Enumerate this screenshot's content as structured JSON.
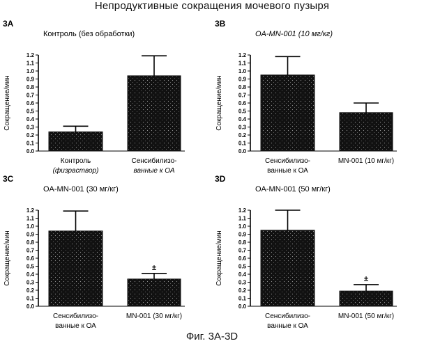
{
  "figure": {
    "title": "Непродуктивные сокращения мочевого пузыря",
    "caption": "Фиг. 3А-3D"
  },
  "colors": {
    "bar": "#111111",
    "axis": "#000000",
    "dots": "#ffffff"
  },
  "chart_data": [
    {
      "id": "3A",
      "type": "bar",
      "panel_label": "3A",
      "title": "Контроль (без обработки)",
      "title_italic": false,
      "ylabel": "Сокращение/мин",
      "ylim": [
        0,
        1.2
      ],
      "yticks": [
        "0.0",
        "0.1",
        "0.2",
        "0.3",
        "0.4",
        "0.5",
        "0.6",
        "0.7",
        "0.8",
        "0.9",
        "1.0",
        "1.1",
        "1.2"
      ],
      "categories": [
        {
          "lines": [
            "Контроль",
            "(физраствор)"
          ],
          "italic_line": 1
        },
        {
          "lines": [
            "Сенсибилизо-",
            "ванные к ОА"
          ],
          "italic_line": 1
        }
      ],
      "values": [
        0.24,
        0.94
      ],
      "errors": [
        0.07,
        0.25
      ],
      "significance": [
        "",
        ""
      ]
    },
    {
      "id": "3B",
      "type": "bar",
      "panel_label": "3B",
      "title": "OA-MN-001 (10 мг/кг)",
      "title_italic": true,
      "ylabel": "Сокращение/мин",
      "ylim": [
        0,
        1.2
      ],
      "yticks": [
        "0.0",
        "0.1",
        "0.2",
        "0.3",
        "0.4",
        "0.5",
        "0.6",
        "0.7",
        "0.8",
        "0.9",
        "1.0",
        "1.1",
        "1.2"
      ],
      "categories": [
        {
          "lines": [
            "Сенсибилизо-",
            "ванные к ОА"
          ],
          "italic_line": -1
        },
        {
          "lines": [
            "MN-001 (10 мг/кг)"
          ],
          "italic_line": -1
        }
      ],
      "values": [
        0.95,
        0.48
      ],
      "errors": [
        0.23,
        0.12
      ],
      "significance": [
        "",
        ""
      ]
    },
    {
      "id": "3C",
      "type": "bar",
      "panel_label": "3C",
      "title": "OA-MN-001 (30 мг/кг)",
      "title_italic": false,
      "ylabel": "Сокращение/мин",
      "ylim": [
        0,
        1.2
      ],
      "yticks": [
        "0.0",
        "0.1",
        "0.2",
        "0.3",
        "0.4",
        "0.5",
        "0.6",
        "0.7",
        "0.8",
        "0.9",
        "1.0",
        "1.1",
        "1.2"
      ],
      "categories": [
        {
          "lines": [
            "Сенсибилизо-",
            "ванные к ОА"
          ],
          "italic_line": -1
        },
        {
          "lines": [
            "MN-001 (30 мг/кг)"
          ],
          "italic_line": -1
        }
      ],
      "values": [
        0.94,
        0.34
      ],
      "errors": [
        0.25,
        0.07
      ],
      "significance": [
        "",
        "±"
      ]
    },
    {
      "id": "3D",
      "type": "bar",
      "panel_label": "3D",
      "title": "OA-MN-001 (50 мг/кг)",
      "title_italic": false,
      "ylabel": "Сокращение/мин",
      "ylim": [
        0,
        1.2
      ],
      "yticks": [
        "0.0",
        "0.1",
        "0.2",
        "0.3",
        "0.4",
        "0.5",
        "0.6",
        "0.7",
        "0.8",
        "0.9",
        "1.0",
        "1.1",
        "1.2"
      ],
      "categories": [
        {
          "lines": [
            "Сенсибилизо-",
            "ванные к ОА"
          ],
          "italic_line": -1
        },
        {
          "lines": [
            "MN-001 (50 мг/кг)"
          ],
          "italic_line": -1
        }
      ],
      "values": [
        0.95,
        0.19
      ],
      "errors": [
        0.25,
        0.08
      ],
      "significance": [
        "",
        "±"
      ]
    }
  ]
}
